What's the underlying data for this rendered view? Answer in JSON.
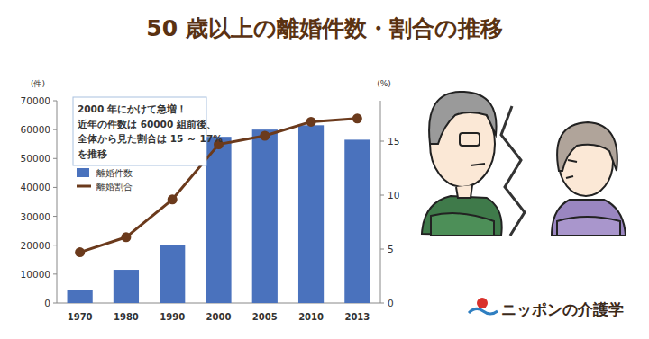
{
  "chart_data": {
    "type": "bar",
    "title": "50 歳以上の離婚件数・割合の推移",
    "categories": [
      "1970",
      "1980",
      "1990",
      "2000",
      "2005",
      "2010",
      "2013"
    ],
    "series": [
      {
        "name": "離婚件数",
        "type": "bar",
        "color": "#4a72bd",
        "values": [
          4500,
          11500,
          20000,
          57500,
          60000,
          61500,
          56500
        ]
      },
      {
        "name": "離婚割合",
        "type": "line",
        "color": "#6b3a1c",
        "marker": "circle",
        "axis": "y2",
        "values": [
          4.7,
          6.1,
          9.6,
          14.7,
          15.5,
          16.8,
          17.1
        ]
      }
    ],
    "ylim": [
      0,
      70000
    ],
    "yticks": [
      0,
      10000,
      20000,
      30000,
      40000,
      50000,
      60000,
      70000
    ],
    "y2lim": [
      0,
      18.75
    ],
    "y2ticks": [
      0,
      5,
      10,
      15
    ],
    "y_label": "(件)",
    "y2_label": "(%)",
    "annotation": [
      "2000 年にかけて急増！",
      "近年の件数は 60000 組前後、",
      "全体から見た割合は 15 ～ 17%",
      "を推移"
    ],
    "legend": "upper left",
    "grid": false
  },
  "brand": "ニッポンの介護学"
}
